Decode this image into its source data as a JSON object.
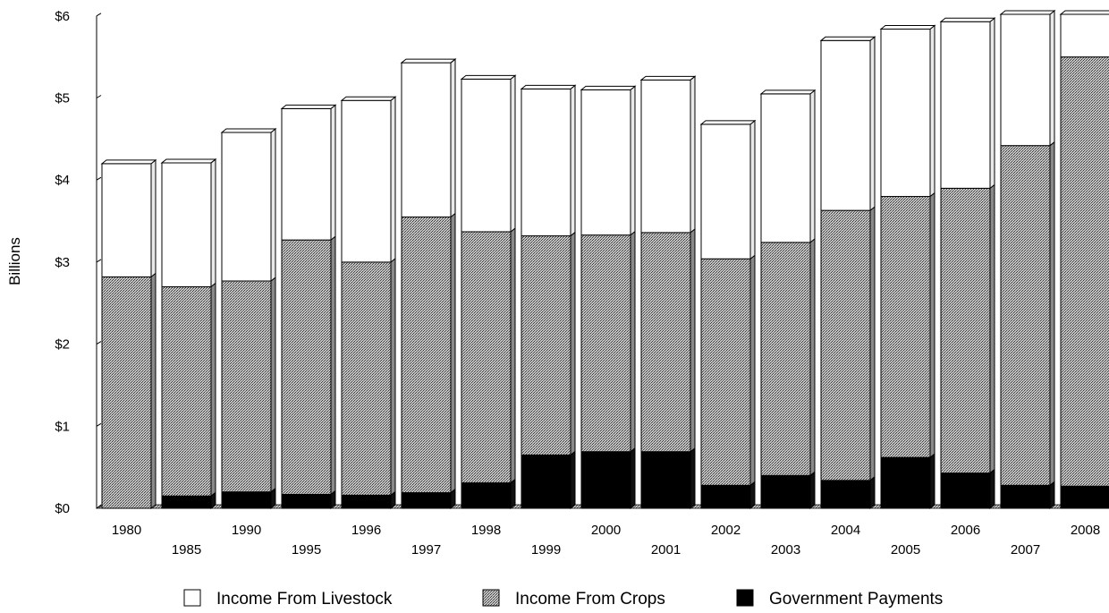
{
  "chart_data": {
    "type": "bar",
    "stacked": true,
    "categories": [
      "1980",
      "1985",
      "1990",
      "1995",
      "1996",
      "1997",
      "1998",
      "1999",
      "2000",
      "2001",
      "2002",
      "2003",
      "2004",
      "2005",
      "2006",
      "2007",
      "2008"
    ],
    "series": [
      {
        "name": "Government Payments",
        "color": "#000000",
        "pattern": "solid",
        "values": [
          0.0,
          0.15,
          0.2,
          0.17,
          0.16,
          0.19,
          0.31,
          0.65,
          0.69,
          0.69,
          0.28,
          0.4,
          0.34,
          0.62,
          0.43,
          0.28,
          0.27
        ]
      },
      {
        "name": "Income From Crops",
        "color": "#999999",
        "pattern": "hatch",
        "values": [
          2.82,
          2.55,
          2.57,
          3.1,
          2.84,
          3.36,
          3.06,
          2.67,
          2.64,
          2.67,
          2.76,
          2.84,
          3.29,
          3.18,
          3.47,
          4.14,
          5.23
        ]
      },
      {
        "name": "Income From Livestock",
        "color": "#ffffff",
        "pattern": "none",
        "values": [
          1.38,
          1.51,
          1.81,
          1.6,
          1.97,
          1.88,
          1.86,
          1.79,
          1.77,
          1.86,
          1.64,
          1.81,
          2.07,
          2.04,
          2.03,
          1.6,
          0.52
        ]
      }
    ],
    "ylabel": "Billions",
    "ylim": [
      0,
      6
    ],
    "yticks": [
      0,
      1,
      2,
      3,
      4,
      5,
      6
    ],
    "ytick_labels": [
      "$0",
      "$1",
      "$2",
      "$3",
      "$4",
      "$5",
      "$6"
    ],
    "grid": false,
    "legend": {
      "position": "bottom",
      "order": [
        "Income From Livestock",
        "Income From Crops",
        "Government Payments"
      ]
    }
  }
}
